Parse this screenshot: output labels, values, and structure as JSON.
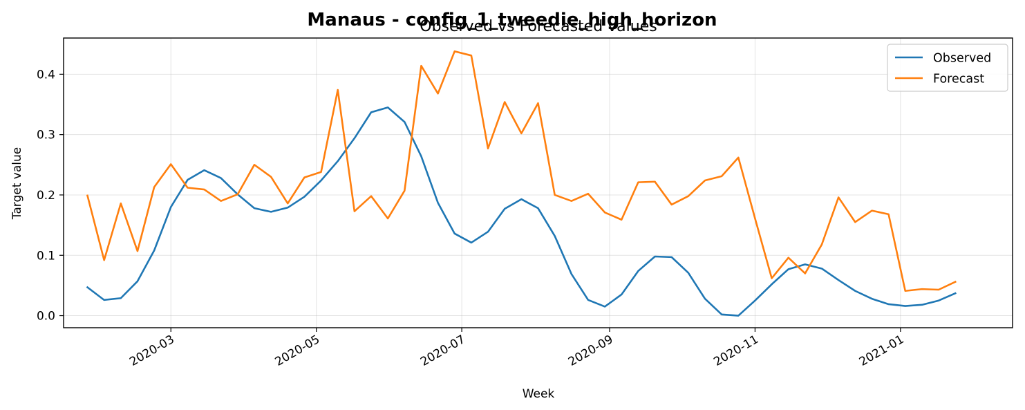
{
  "chart_data": {
    "type": "line",
    "title": "Manaus - config_1_tweedie_high_horizon",
    "subtitle": "Observed vs Forecasted values",
    "xlabel": "Week",
    "ylabel": "Target value",
    "ylim": [
      -0.02,
      0.46
    ],
    "xlim": [
      "2020-01-16",
      "2021-02-17"
    ],
    "x_ticks": [
      "2020-03-01",
      "2020-05-01",
      "2020-07-01",
      "2020-09-01",
      "2020-11-01",
      "2021-01-01"
    ],
    "x_tick_labels": [
      "2020-03",
      "2020-05",
      "2020-07",
      "2020-09",
      "2020-11",
      "2021-01"
    ],
    "y_ticks": [
      0.0,
      0.1,
      0.2,
      0.3,
      0.4
    ],
    "y_tick_labels": [
      "0.0",
      "0.1",
      "0.2",
      "0.3",
      "0.4"
    ],
    "grid": true,
    "legend_position": "top-right",
    "x": [
      "2020-01-26",
      "2020-02-02",
      "2020-02-09",
      "2020-02-16",
      "2020-02-23",
      "2020-03-01",
      "2020-03-08",
      "2020-03-15",
      "2020-03-22",
      "2020-03-29",
      "2020-04-05",
      "2020-04-12",
      "2020-04-19",
      "2020-04-26",
      "2020-05-03",
      "2020-05-10",
      "2020-05-17",
      "2020-05-24",
      "2020-05-31",
      "2020-06-07",
      "2020-06-14",
      "2020-06-21",
      "2020-06-28",
      "2020-07-05",
      "2020-07-12",
      "2020-07-19",
      "2020-07-26",
      "2020-08-02",
      "2020-08-09",
      "2020-08-16",
      "2020-08-23",
      "2020-08-30",
      "2020-09-06",
      "2020-09-13",
      "2020-09-20",
      "2020-09-27",
      "2020-10-04",
      "2020-10-11",
      "2020-10-18",
      "2020-10-25",
      "2020-11-01",
      "2020-11-08",
      "2020-11-15",
      "2020-11-22",
      "2020-11-29",
      "2020-12-06",
      "2020-12-13",
      "2020-12-20",
      "2020-12-27",
      "2021-01-03",
      "2021-01-10",
      "2021-01-17",
      "2021-01-24"
    ],
    "series": [
      {
        "name": "Observed",
        "color": "#1f77b4",
        "values": [
          0.047,
          0.026,
          0.029,
          0.057,
          0.108,
          0.18,
          0.225,
          0.241,
          0.228,
          0.201,
          0.178,
          0.172,
          0.179,
          0.197,
          0.224,
          0.256,
          0.294,
          0.337,
          0.345,
          0.321,
          0.264,
          0.187,
          0.136,
          0.121,
          0.139,
          0.177,
          0.193,
          0.178,
          0.132,
          0.069,
          0.026,
          0.015,
          0.035,
          0.074,
          0.098,
          0.097,
          0.071,
          0.028,
          0.002,
          0.0,
          0.025,
          0.052,
          0.077,
          0.085,
          0.078,
          0.059,
          0.041,
          0.028,
          0.019,
          0.016,
          0.018,
          0.025,
          0.037
        ]
      },
      {
        "name": "Forecast",
        "color": "#ff7f0e",
        "values": [
          0.199,
          0.092,
          0.186,
          0.107,
          0.213,
          0.251,
          0.212,
          0.209,
          0.19,
          0.201,
          0.25,
          0.23,
          0.186,
          0.229,
          0.238,
          0.374,
          0.173,
          0.198,
          0.161,
          0.207,
          0.414,
          0.368,
          0.438,
          0.431,
          0.277,
          0.354,
          0.302,
          0.352,
          0.2,
          0.19,
          0.202,
          0.171,
          0.159,
          0.221,
          0.222,
          0.184,
          0.198,
          0.224,
          0.231,
          0.262,
          0.161,
          0.062,
          0.096,
          0.07,
          0.118,
          0.196,
          0.155,
          0.174,
          0.168,
          0.041,
          0.044,
          0.043,
          0.056
        ]
      }
    ]
  }
}
